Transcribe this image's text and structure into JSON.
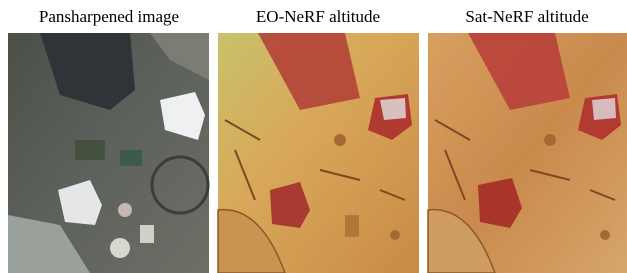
{
  "panels": [
    {
      "title": "Pansharpened image"
    },
    {
      "title": "EO-NeRF altitude"
    },
    {
      "title": "Sat-NeRF altitude"
    }
  ]
}
